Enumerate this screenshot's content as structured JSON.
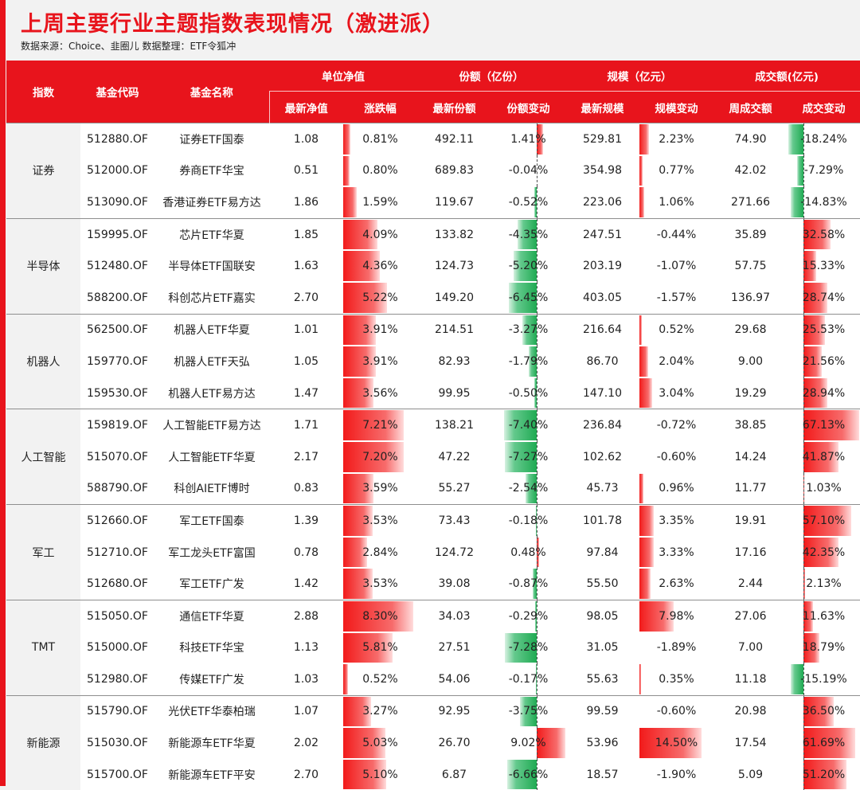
{
  "title": "上周主要行业主题指数表现情况（激进派）",
  "source": "数据来源：Choice、韭圈儿  数据整理：ETF令狐冲",
  "colors": {
    "brand_red": "#e8141c",
    "positive": "#f21a1a",
    "negative": "#1faa52"
  },
  "headers": {
    "index": "指数",
    "code": "基金代码",
    "name": "基金名称",
    "nav_group": "单位净值",
    "share_group": "份额（亿份）",
    "scale_group": "规模（亿元）",
    "turnover_group": "成交额(亿元)",
    "nav": "最新净值",
    "chg": "涨跌幅",
    "share": "最新份额",
    "share_chg": "份额变动",
    "scale": "最新规模",
    "scale_chg": "规模变动",
    "turnover": "周成交额",
    "turnover_chg": "成交变动"
  },
  "groups": [
    {
      "category": "证券",
      "rows": [
        {
          "code": "512880.OF",
          "name": "证券ETF国泰",
          "nav": "1.08",
          "chg": "0.81%",
          "share": "492.11",
          "share_chg": "1.41%",
          "scale": "529.81",
          "scale_chg": "2.23%",
          "turnover": "74.90",
          "turnover_chg": "-18.24%"
        },
        {
          "code": "512000.OF",
          "name": "券商ETF华宝",
          "nav": "0.51",
          "chg": "0.80%",
          "share": "689.83",
          "share_chg": "-0.04%",
          "scale": "354.98",
          "scale_chg": "0.77%",
          "turnover": "42.02",
          "turnover_chg": "-7.29%"
        },
        {
          "code": "513090.OF",
          "name": "香港证券ETF易方达",
          "nav": "1.86",
          "chg": "1.59%",
          "share": "119.67",
          "share_chg": "-0.52%",
          "scale": "223.06",
          "scale_chg": "1.06%",
          "turnover": "271.66",
          "turnover_chg": "-14.83%"
        }
      ]
    },
    {
      "category": "半导体",
      "rows": [
        {
          "code": "159995.OF",
          "name": "芯片ETF华夏",
          "nav": "1.85",
          "chg": "4.09%",
          "share": "133.82",
          "share_chg": "-4.35%",
          "scale": "247.51",
          "scale_chg": "-0.44%",
          "turnover": "35.89",
          "turnover_chg": "32.58%"
        },
        {
          "code": "512480.OF",
          "name": "半导体ETF国联安",
          "nav": "1.63",
          "chg": "4.36%",
          "share": "124.73",
          "share_chg": "-5.20%",
          "scale": "203.19",
          "scale_chg": "-1.07%",
          "turnover": "57.75",
          "turnover_chg": "15.33%"
        },
        {
          "code": "588200.OF",
          "name": "科创芯片ETF嘉实",
          "nav": "2.70",
          "chg": "5.22%",
          "share": "149.20",
          "share_chg": "-6.45%",
          "scale": "403.05",
          "scale_chg": "-1.57%",
          "turnover": "136.97",
          "turnover_chg": "28.74%"
        }
      ]
    },
    {
      "category": "机器人",
      "rows": [
        {
          "code": "562500.OF",
          "name": "机器人ETF华夏",
          "nav": "1.01",
          "chg": "3.91%",
          "share": "214.51",
          "share_chg": "-3.27%",
          "scale": "216.64",
          "scale_chg": "0.52%",
          "turnover": "29.68",
          "turnover_chg": "25.53%"
        },
        {
          "code": "159770.OF",
          "name": "机器人ETF天弘",
          "nav": "1.05",
          "chg": "3.91%",
          "share": "82.93",
          "share_chg": "-1.79%",
          "scale": "86.70",
          "scale_chg": "2.04%",
          "turnover": "9.00",
          "turnover_chg": "21.56%"
        },
        {
          "code": "159530.OF",
          "name": "机器人ETF易方达",
          "nav": "1.47",
          "chg": "3.56%",
          "share": "99.95",
          "share_chg": "-0.50%",
          "scale": "147.10",
          "scale_chg": "3.04%",
          "turnover": "19.29",
          "turnover_chg": "28.94%"
        }
      ]
    },
    {
      "category": "人工智能",
      "rows": [
        {
          "code": "159819.OF",
          "name": "人工智能ETF易方达",
          "nav": "1.71",
          "chg": "7.21%",
          "share": "138.21",
          "share_chg": "-7.40%",
          "scale": "236.84",
          "scale_chg": "-0.72%",
          "turnover": "38.85",
          "turnover_chg": "67.13%"
        },
        {
          "code": "515070.OF",
          "name": "人工智能ETF华夏",
          "nav": "2.17",
          "chg": "7.20%",
          "share": "47.22",
          "share_chg": "-7.27%",
          "scale": "102.62",
          "scale_chg": "-0.60%",
          "turnover": "14.24",
          "turnover_chg": "41.87%"
        },
        {
          "code": "588790.OF",
          "name": "科创AIETF博时",
          "nav": "0.83",
          "chg": "3.59%",
          "share": "55.27",
          "share_chg": "-2.54%",
          "scale": "45.73",
          "scale_chg": "0.96%",
          "turnover": "11.77",
          "turnover_chg": "1.03%"
        }
      ]
    },
    {
      "category": "军工",
      "rows": [
        {
          "code": "512660.OF",
          "name": "军工ETF国泰",
          "nav": "1.39",
          "chg": "3.53%",
          "share": "73.43",
          "share_chg": "-0.18%",
          "scale": "101.78",
          "scale_chg": "3.35%",
          "turnover": "19.91",
          "turnover_chg": "57.10%"
        },
        {
          "code": "512710.OF",
          "name": "军工龙头ETF富国",
          "nav": "0.78",
          "chg": "2.84%",
          "share": "124.72",
          "share_chg": "0.48%",
          "scale": "97.84",
          "scale_chg": "3.33%",
          "turnover": "17.16",
          "turnover_chg": "42.35%"
        },
        {
          "code": "512680.OF",
          "name": "军工ETF广发",
          "nav": "1.42",
          "chg": "3.53%",
          "share": "39.08",
          "share_chg": "-0.87%",
          "scale": "55.50",
          "scale_chg": "2.63%",
          "turnover": "2.44",
          "turnover_chg": "2.13%"
        }
      ]
    },
    {
      "category": "TMT",
      "rows": [
        {
          "code": "515050.OF",
          "name": "通信ETF华夏",
          "nav": "2.88",
          "chg": "8.30%",
          "share": "34.03",
          "share_chg": "-0.29%",
          "scale": "98.05",
          "scale_chg": "7.98%",
          "turnover": "27.06",
          "turnover_chg": "11.63%"
        },
        {
          "code": "515000.OF",
          "name": "科技ETF华宝",
          "nav": "1.13",
          "chg": "5.81%",
          "share": "27.51",
          "share_chg": "-7.28%",
          "scale": "31.05",
          "scale_chg": "-1.89%",
          "turnover": "7.00",
          "turnover_chg": "18.79%"
        },
        {
          "code": "512980.OF",
          "name": "传媒ETF广发",
          "nav": "1.03",
          "chg": "0.52%",
          "share": "54.06",
          "share_chg": "-0.17%",
          "scale": "55.63",
          "scale_chg": "0.35%",
          "turnover": "11.18",
          "turnover_chg": "-15.19%"
        }
      ]
    },
    {
      "category": "新能源",
      "rows": [
        {
          "code": "515790.OF",
          "name": "光伏ETF华泰柏瑞",
          "nav": "1.07",
          "chg": "3.27%",
          "share": "92.95",
          "share_chg": "-3.75%",
          "scale": "99.59",
          "scale_chg": "-0.60%",
          "turnover": "20.98",
          "turnover_chg": "36.50%"
        },
        {
          "code": "515030.OF",
          "name": "新能源车ETF华夏",
          "nav": "2.02",
          "chg": "5.03%",
          "share": "26.70",
          "share_chg": "9.02%",
          "scale": "53.96",
          "scale_chg": "14.50%",
          "turnover": "17.54",
          "turnover_chg": "61.69%"
        },
        {
          "code": "515700.OF",
          "name": "新能源车ETF平安",
          "nav": "2.70",
          "chg": "5.10%",
          "share": "6.87",
          "share_chg": "-6.66%",
          "scale": "18.57",
          "scale_chg": "-1.90%",
          "turnover": "5.09",
          "turnover_chg": "51.20%"
        }
      ]
    }
  ]
}
